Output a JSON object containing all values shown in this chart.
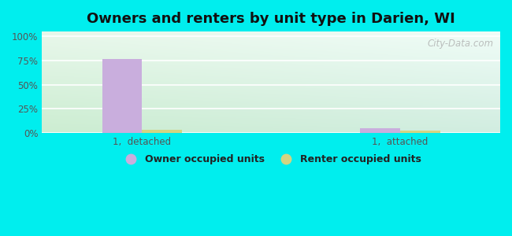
{
  "title": "Owners and renters by unit type in Darien, WI",
  "categories": [
    "1,  detached",
    "1,  attached"
  ],
  "owner_values": [
    76.5,
    5.0
  ],
  "renter_values": [
    2.8,
    2.5
  ],
  "owner_color": "#c9aedd",
  "renter_color": "#d4d482",
  "outer_bg": "#00eeee",
  "plot_bg_topleft": "#eaf5ea",
  "plot_bg_topright": "#ddf0f0",
  "plot_bg_bottom": "#d0ecd0",
  "yticks": [
    0,
    25,
    50,
    75,
    100
  ],
  "ytick_labels": [
    "0%",
    "25%",
    "50%",
    "75%",
    "100%"
  ],
  "ylim": [
    0,
    105
  ],
  "bar_width": 0.28,
  "title_fontsize": 13,
  "legend_labels": [
    "Owner occupied units",
    "Renter occupied units"
  ],
  "watermark": "City-Data.com",
  "tick_color": "#555555"
}
